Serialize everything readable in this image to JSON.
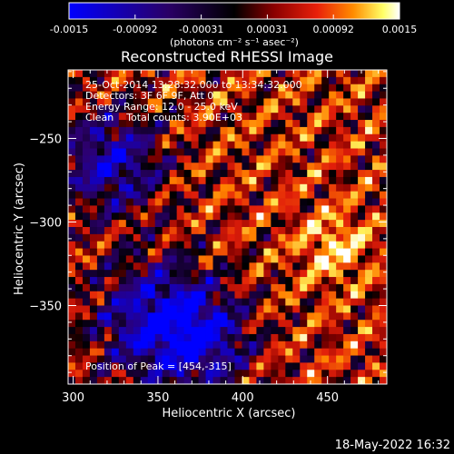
{
  "chart_data": {
    "type": "heatmap",
    "title": "Reconstructed RHESSI Image",
    "xlabel": "Heliocentric X (arcsec)",
    "ylabel": "Heliocentric Y (arcsec)",
    "xlim": [
      297,
      485
    ],
    "ylim": [
      -397,
      -209
    ],
    "x_ticks": [
      300,
      350,
      400,
      450
    ],
    "y_ticks": [
      -250,
      -300,
      -350
    ],
    "grid": false,
    "colorbar": {
      "label": "(photons cm⁻² s⁻¹ asec⁻²)",
      "range": [
        -0.0015,
        0.0015
      ],
      "ticks": [
        "-0.0015",
        "-0.00092",
        "-0.00031",
        "0.00031",
        "0.00092",
        "0.0015"
      ],
      "colormap": [
        "#0000ff",
        "#2a0066",
        "#000000",
        "#8b0000",
        "#e8200a",
        "#ff8c00",
        "#ffff66",
        "#ffffff"
      ]
    },
    "annotations": [
      "25-Oct-2014 13:28:32.000 to 13:34:32.000",
      "Detectors: 3F 6F 9F, Att 0",
      "Energy Range: 12.0 - 25.0 keV",
      "Clean    Total counts: 3.90E+03",
      "Position of Peak = [454,-315]"
    ],
    "peak": {
      "x": 454,
      "y": -315
    },
    "blue_blobs": [
      {
        "x": 322,
        "y": -264,
        "r": 22,
        "v": -0.0008
      },
      {
        "x": 350,
        "y": -359,
        "r": 26,
        "v": -0.0009
      },
      {
        "x": 378,
        "y": -372,
        "r": 20,
        "v": -0.0006
      }
    ]
  },
  "footer": {
    "timestamp": "18-May-2022 16:32"
  }
}
